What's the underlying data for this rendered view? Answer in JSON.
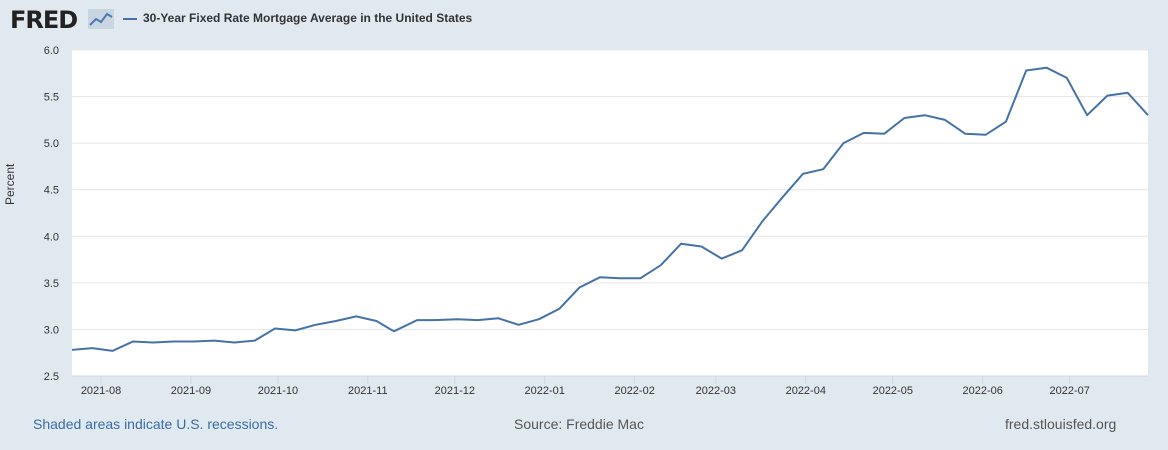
{
  "header": {
    "logo_text": "FRED",
    "legend_label": "30-Year Fixed Rate Mortgage Average in the United States"
  },
  "footer": {
    "recessions_note": "Shaded areas indicate U.S. recessions.",
    "source": "Source: Freddie Mac",
    "site": "fred.stlouisfed.org"
  },
  "colors": {
    "series": "#4572a7",
    "plot_bg": "#ffffff",
    "page_bg": "#e1e9f0",
    "grid": "#e6e6e6"
  },
  "chart_data": {
    "type": "line",
    "title": "30-Year Fixed Rate Mortgage Average in the United States",
    "xlabel": "",
    "ylabel": "Percent",
    "ylim": [
      2.5,
      6.0
    ],
    "yticks": [
      "2.5",
      "3.0",
      "3.5",
      "4.0",
      "4.5",
      "5.0",
      "5.5",
      "6.0"
    ],
    "x_range": [
      "2021-07-22",
      "2022-07-28"
    ],
    "xticks": [
      {
        "date": "2021-08-01",
        "label": "2021-08"
      },
      {
        "date": "2021-09-01",
        "label": "2021-09"
      },
      {
        "date": "2021-10-01",
        "label": "2021-10"
      },
      {
        "date": "2021-11-01",
        "label": "2021-11"
      },
      {
        "date": "2021-12-01",
        "label": "2021-12"
      },
      {
        "date": "2022-01-01",
        "label": "2022-01"
      },
      {
        "date": "2022-02-01",
        "label": "2022-02"
      },
      {
        "date": "2022-03-01",
        "label": "2022-03"
      },
      {
        "date": "2022-04-01",
        "label": "2022-04"
      },
      {
        "date": "2022-05-01",
        "label": "2022-05"
      },
      {
        "date": "2022-06-01",
        "label": "2022-06"
      },
      {
        "date": "2022-07-01",
        "label": "2022-07"
      }
    ],
    "series": [
      {
        "name": "30-Year Fixed Rate Mortgage Average in the United States",
        "x": [
          "2021-07-22",
          "2021-07-29",
          "2021-08-05",
          "2021-08-12",
          "2021-08-19",
          "2021-08-26",
          "2021-09-02",
          "2021-09-09",
          "2021-09-16",
          "2021-09-23",
          "2021-09-30",
          "2021-10-07",
          "2021-10-14",
          "2021-10-21",
          "2021-10-28",
          "2021-11-04",
          "2021-11-10",
          "2021-11-18",
          "2021-11-24",
          "2021-12-02",
          "2021-12-09",
          "2021-12-16",
          "2021-12-23",
          "2021-12-30",
          "2022-01-06",
          "2022-01-13",
          "2022-01-20",
          "2022-01-27",
          "2022-02-03",
          "2022-02-10",
          "2022-02-17",
          "2022-02-24",
          "2022-03-03",
          "2022-03-10",
          "2022-03-17",
          "2022-03-24",
          "2022-03-31",
          "2022-04-07",
          "2022-04-14",
          "2022-04-21",
          "2022-04-28",
          "2022-05-05",
          "2022-05-12",
          "2022-05-19",
          "2022-05-26",
          "2022-06-02",
          "2022-06-09",
          "2022-06-16",
          "2022-06-23",
          "2022-06-30",
          "2022-07-07",
          "2022-07-14",
          "2022-07-21",
          "2022-07-28"
        ],
        "values": [
          2.78,
          2.8,
          2.77,
          2.87,
          2.86,
          2.87,
          2.87,
          2.88,
          2.86,
          2.88,
          3.01,
          2.99,
          3.05,
          3.09,
          3.14,
          3.09,
          2.98,
          3.1,
          3.1,
          3.11,
          3.1,
          3.12,
          3.05,
          3.11,
          3.22,
          3.45,
          3.56,
          3.55,
          3.55,
          3.69,
          3.92,
          3.89,
          3.76,
          3.85,
          4.16,
          4.42,
          4.67,
          4.72,
          5.0,
          5.11,
          5.1,
          5.27,
          5.3,
          5.25,
          5.1,
          5.09,
          5.23,
          5.78,
          5.81,
          5.7,
          5.3,
          5.51,
          5.54,
          5.3
        ]
      }
    ]
  }
}
